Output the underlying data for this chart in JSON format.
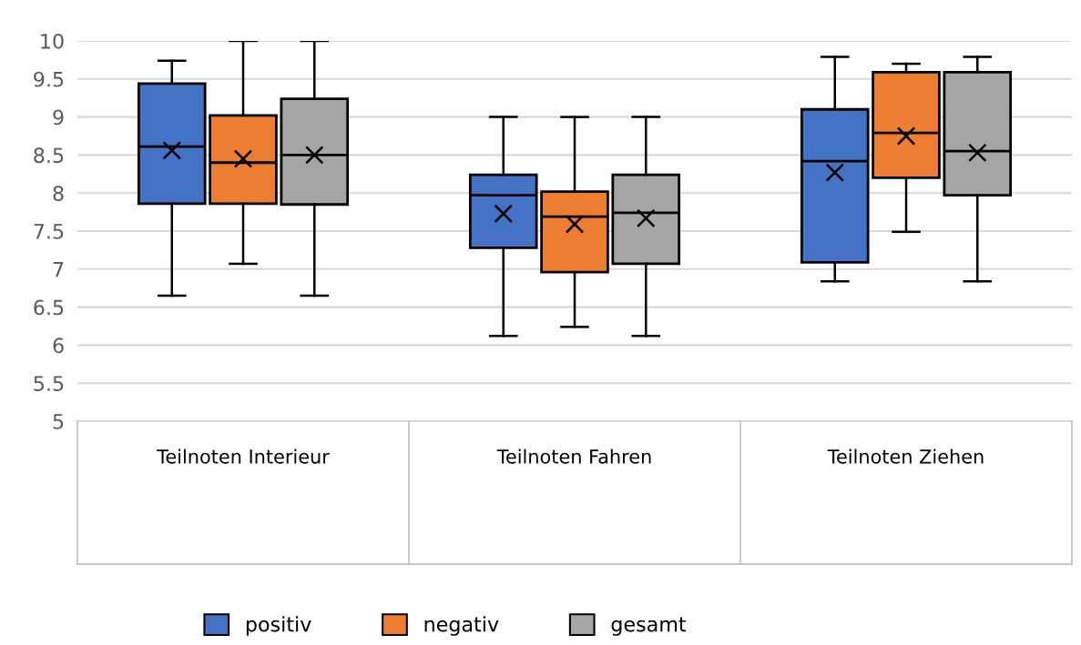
{
  "chart_data": {
    "type": "box",
    "categories": [
      "Teilnoten Interieur",
      "Teilnoten Fahren",
      "Teilnoten Ziehen"
    ],
    "series": [
      {
        "name": "positiv",
        "color": "#4472c4",
        "boxes": [
          {
            "low": 6.65,
            "q1": 7.86,
            "median": 8.61,
            "q3": 9.44,
            "high": 9.74,
            "mean": 8.56
          },
          {
            "low": 6.12,
            "q1": 7.28,
            "median": 7.97,
            "q3": 8.24,
            "high": 9.0,
            "mean": 7.73
          },
          {
            "low": 6.84,
            "q1": 7.09,
            "median": 8.42,
            "q3": 9.1,
            "high": 9.79,
            "mean": 8.27
          }
        ]
      },
      {
        "name": "negativ",
        "color": "#ed7d31",
        "boxes": [
          {
            "low": 7.07,
            "q1": 7.86,
            "median": 8.4,
            "q3": 9.02,
            "high": 10.0,
            "mean": 8.45
          },
          {
            "low": 6.24,
            "q1": 6.96,
            "median": 7.69,
            "q3": 8.02,
            "high": 9.0,
            "mean": 7.59
          },
          {
            "low": 7.49,
            "q1": 8.2,
            "median": 8.79,
            "q3": 9.59,
            "high": 9.7,
            "mean": 8.75
          }
        ]
      },
      {
        "name": "gesamt",
        "color": "#a5a5a5",
        "boxes": [
          {
            "low": 6.65,
            "q1": 7.85,
            "median": 8.5,
            "q3": 9.24,
            "high": 10.0,
            "mean": 8.5
          },
          {
            "low": 6.12,
            "q1": 7.07,
            "median": 7.74,
            "q3": 8.24,
            "high": 9.0,
            "mean": 7.67
          },
          {
            "low": 6.84,
            "q1": 7.97,
            "median": 8.55,
            "q3": 9.59,
            "high": 9.79,
            "mean": 8.53
          }
        ]
      }
    ],
    "ylim": [
      5,
      10
    ],
    "yticks": [
      5,
      5.5,
      6,
      6.5,
      7,
      7.5,
      8,
      8.5,
      9,
      9.5,
      10
    ],
    "grid": "y",
    "legend": "bottom",
    "marker": "cross"
  }
}
